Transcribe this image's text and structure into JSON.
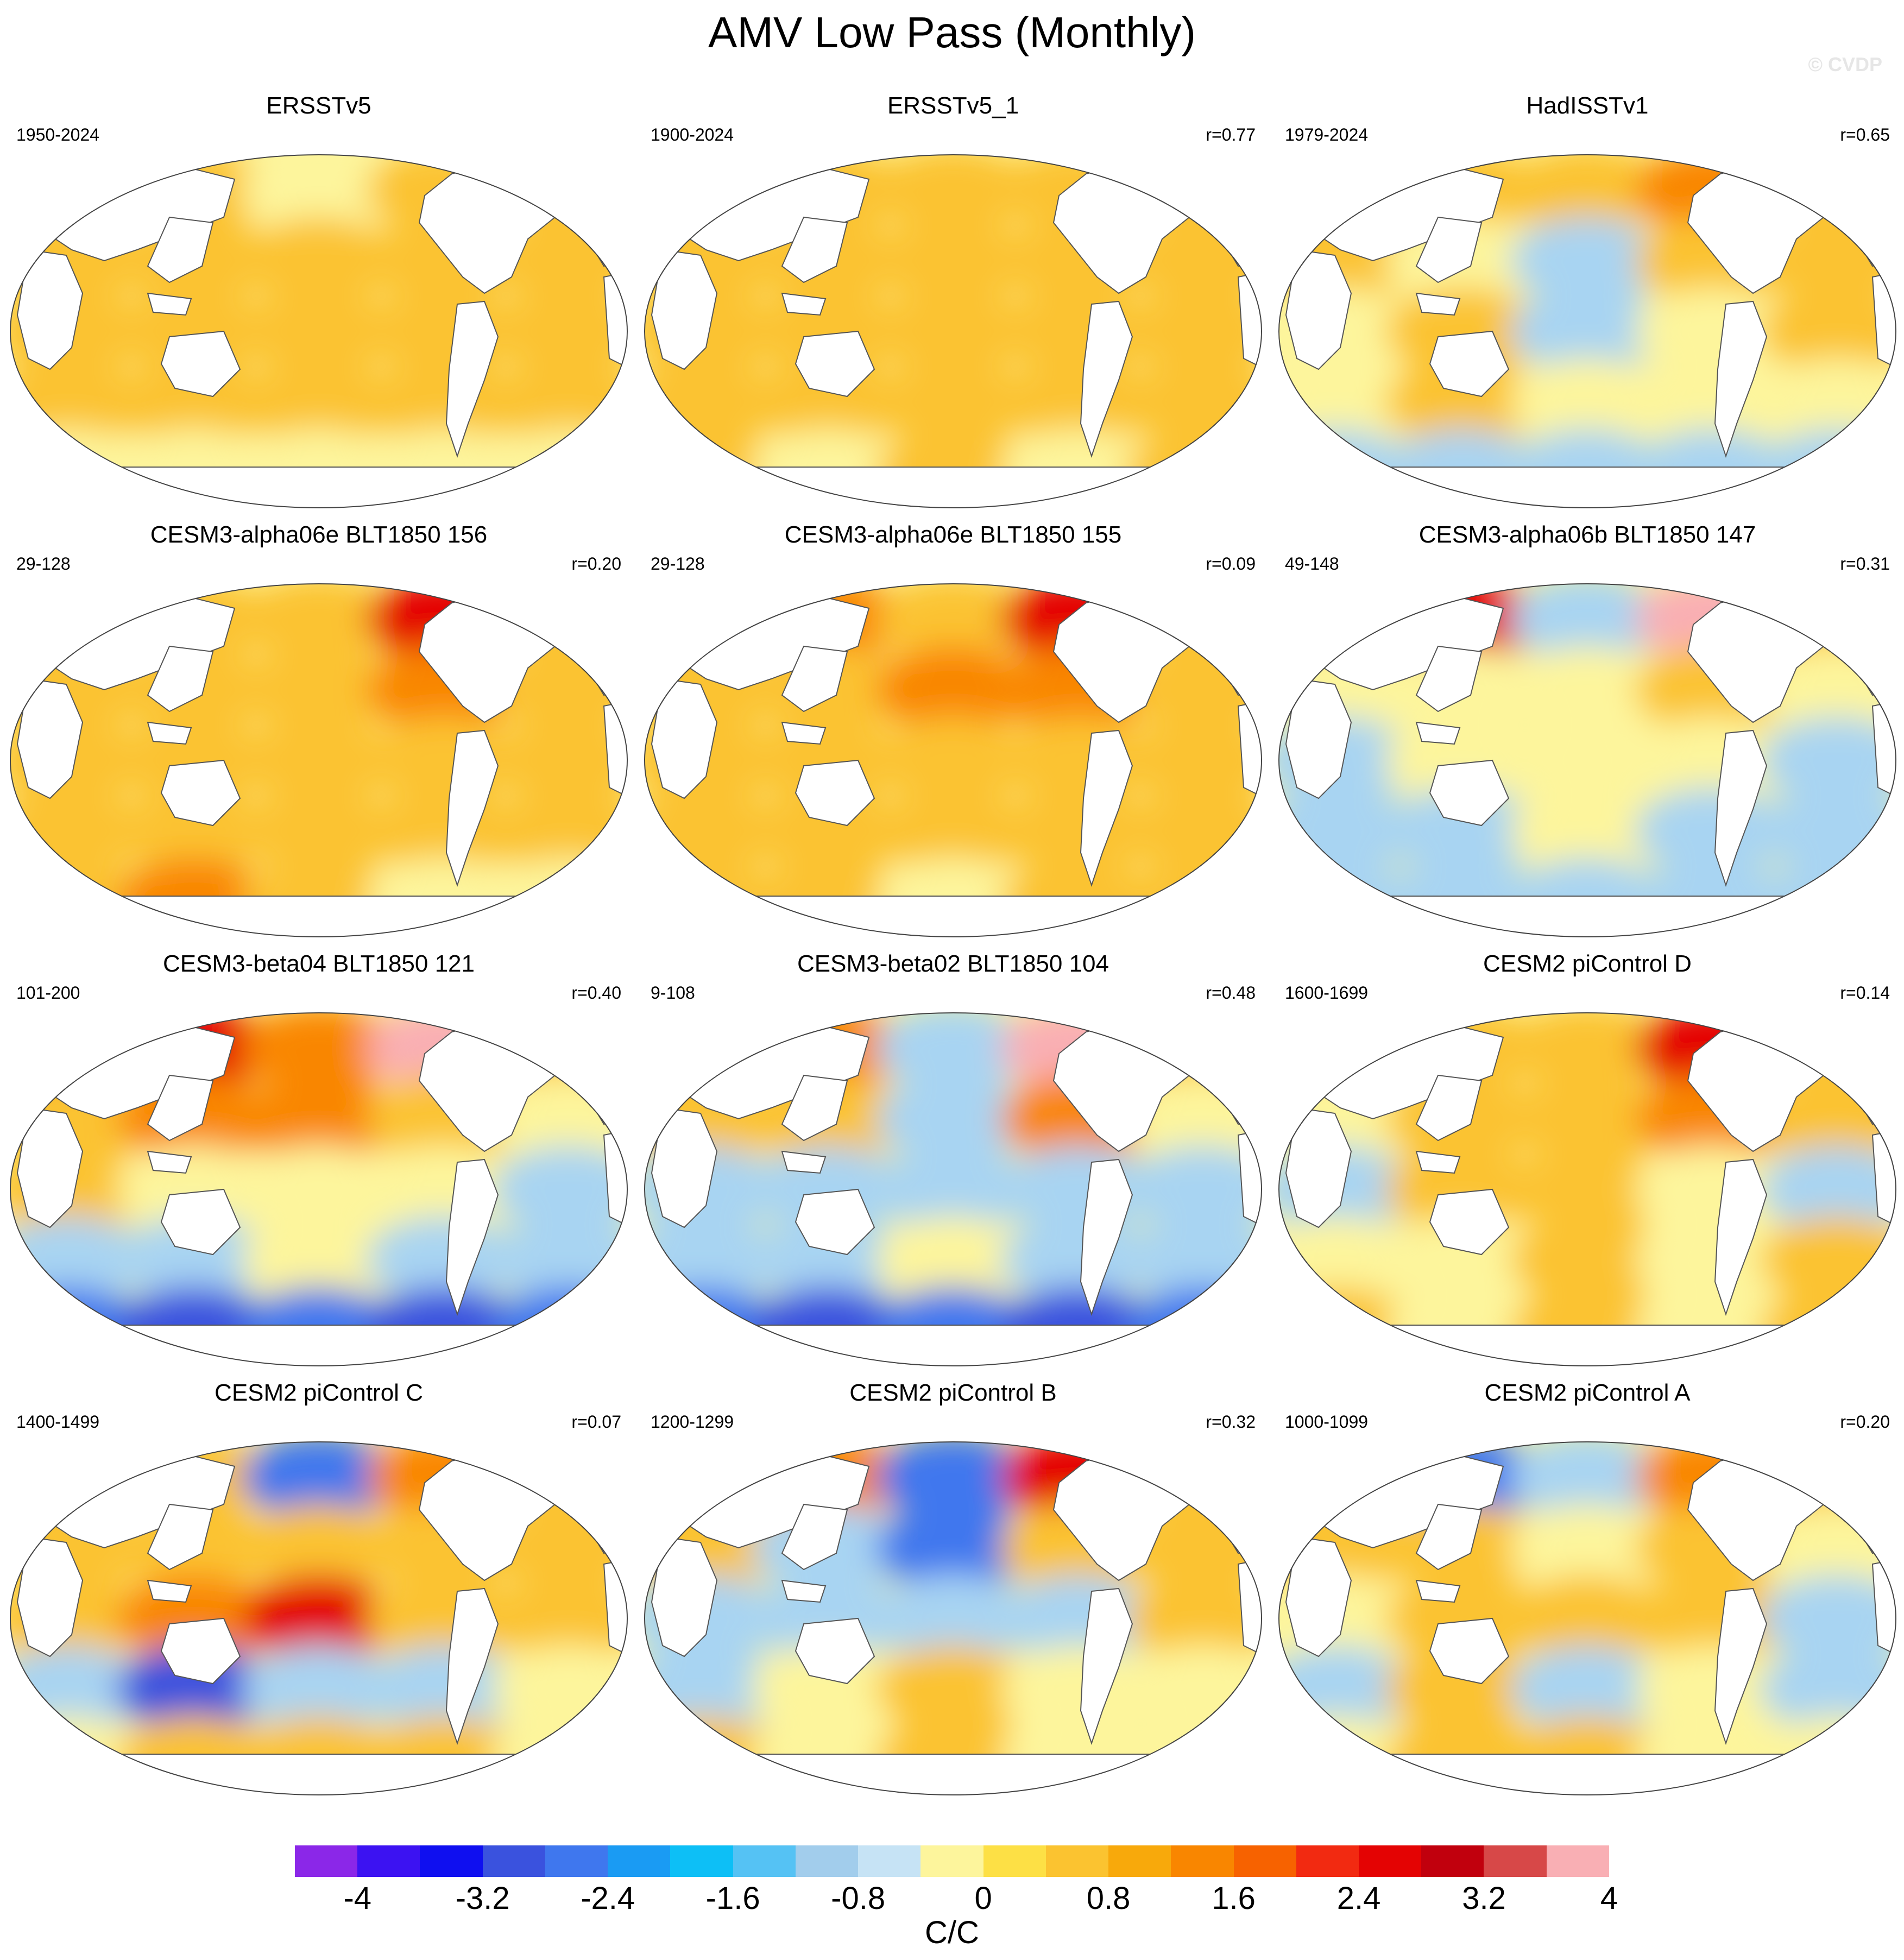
{
  "title": "AMV Low Pass (Monthly)",
  "watermark": "© CVDP",
  "panels": [
    {
      "title": "ERSSTv5",
      "period": "1950-2024",
      "corr": "",
      "pattern": [
        1,
        1,
        0,
        1,
        1,
        1,
        1,
        1,
        1,
        1,
        1,
        1,
        1,
        1,
        1,
        1,
        1,
        1,
        1,
        1,
        0,
        0,
        0,
        0,
        0
      ]
    },
    {
      "title": "ERSSTv5_1",
      "period": "1900-2024",
      "corr": "r=0.77",
      "pattern": [
        1,
        1,
        1,
        1,
        1,
        1,
        1,
        1,
        1,
        1,
        1,
        1,
        1,
        1,
        1,
        1,
        1,
        1,
        1,
        1,
        1,
        0,
        1,
        0,
        1
      ]
    },
    {
      "title": "HadISSTv1",
      "period": "1979-2024",
      "corr": "r=0.65",
      "pattern": [
        1,
        1,
        1,
        2,
        1,
        1,
        0,
        -1,
        1,
        1,
        0,
        1,
        -1,
        0,
        1,
        0,
        1,
        0,
        0,
        0,
        -1,
        -1,
        -1,
        -1,
        -1
      ]
    },
    {
      "title": "CESM3-alpha06e BLT1850 156",
      "period": "29-128",
      "corr": "r=0.20",
      "pattern": [
        1,
        1,
        1,
        3,
        1,
        1,
        1,
        1,
        2,
        1,
        1,
        1,
        1,
        1,
        1,
        1,
        1,
        1,
        1,
        1,
        1,
        2,
        1,
        0,
        0
      ]
    },
    {
      "title": "CESM3-alpha06e BLT1850 155",
      "period": "29-128",
      "corr": "r=0.09",
      "pattern": [
        1,
        2,
        1,
        3,
        1,
        1,
        1,
        2,
        2,
        1,
        1,
        1,
        1,
        1,
        1,
        1,
        1,
        1,
        1,
        1,
        1,
        1,
        0,
        1,
        1
      ]
    },
    {
      "title": "CESM3-alpha06b BLT1850 147",
      "period": "49-148",
      "corr": "r=0.31",
      "pattern": [
        1,
        3,
        -1,
        4,
        1,
        0,
        0,
        0,
        1,
        0,
        -1,
        0,
        0,
        0,
        -1,
        -1,
        -1,
        0,
        -1,
        -1,
        -1,
        -1,
        -1,
        -1,
        -1
      ]
    },
    {
      "title": "CESM3-beta04 BLT1850 121",
      "period": "101-200",
      "corr": "r=0.40",
      "pattern": [
        2,
        3,
        2,
        4,
        1,
        1,
        2,
        2,
        1,
        0,
        1,
        0,
        0,
        0,
        -1,
        -1,
        -1,
        0,
        -1,
        -1,
        -2,
        -3,
        -2,
        -3,
        -2
      ]
    },
    {
      "title": "CESM3-beta02 BLT1850 104",
      "period": "9-108",
      "corr": "r=0.48",
      "pattern": [
        1,
        2,
        -1,
        4,
        1,
        1,
        1,
        -1,
        2,
        0,
        -1,
        -1,
        -1,
        -1,
        -1,
        -1,
        -1,
        0,
        -1,
        -1,
        -2,
        -3,
        -2,
        -3,
        -2
      ]
    },
    {
      "title": "CESM2 piControl D",
      "period": "1600-1699",
      "corr": "r=0.14",
      "pattern": [
        1,
        1,
        1,
        3,
        1,
        0,
        1,
        1,
        2,
        1,
        -1,
        1,
        1,
        0,
        -1,
        0,
        0,
        1,
        0,
        1,
        1,
        0,
        1,
        0,
        1
      ]
    },
    {
      "title": "CESM2 piControl C",
      "period": "1400-1499",
      "corr": "r=0.07",
      "pattern": [
        1,
        1,
        -2,
        2,
        1,
        1,
        1,
        1,
        1,
        1,
        1,
        2,
        3,
        1,
        1,
        -1,
        -3,
        -1,
        -1,
        0,
        0,
        1,
        1,
        1,
        0
      ]
    },
    {
      "title": "CESM2 piControl B",
      "period": "1200-1299",
      "corr": "r=0.32",
      "pattern": [
        1,
        2,
        -2,
        3,
        1,
        1,
        -1,
        -2,
        1,
        1,
        -1,
        -1,
        -1,
        -1,
        1,
        -1,
        0,
        1,
        0,
        0,
        1,
        0,
        1,
        0,
        0
      ]
    },
    {
      "title": "CESM2 piControl A",
      "period": "1000-1099",
      "corr": "r=0.20",
      "pattern": [
        1,
        -2,
        -1,
        2,
        1,
        1,
        1,
        0,
        1,
        0,
        0,
        1,
        1,
        1,
        -1,
        -1,
        1,
        -1,
        0,
        -1,
        0,
        1,
        1,
        0,
        0
      ]
    }
  ],
  "colorbar": {
    "colors": [
      "#8b27e8",
      "#3c12f2",
      "#0f0ff0",
      "#3a52de",
      "#3f77ee",
      "#1a9bf3",
      "#0dbff6",
      "#55c2f4",
      "#a2cdec",
      "#c6e3f5",
      "#fdf59c",
      "#fde045",
      "#fbc330",
      "#f8a90b",
      "#f98600",
      "#f76200",
      "#f22a11",
      "#e40303",
      "#c1000d",
      "#d74848",
      "#f9afb4"
    ],
    "ticks": [
      "-4",
      "-3.2",
      "-2.4",
      "-1.6",
      "-0.8",
      "0",
      "0.8",
      "1.6",
      "2.4",
      "3.2",
      "4"
    ],
    "units": "C/C"
  },
  "anomaly_colors": {
    "-3": "#3a52de",
    "-2": "#3f77ee",
    "-1": "#a8d4f2",
    "0": "#fdf59c",
    "1": "#fbc330",
    "2": "#f98600",
    "3": "#e40303",
    "4": "#f9afb4"
  }
}
